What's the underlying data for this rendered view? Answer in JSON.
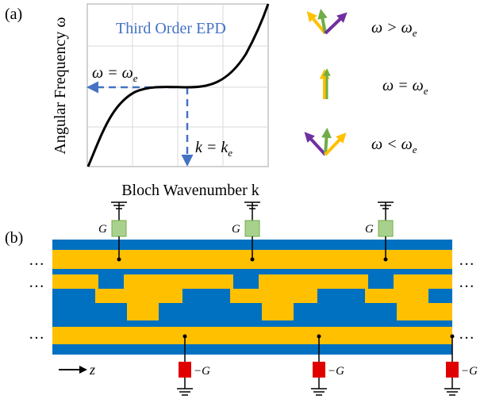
{
  "panel_a": {
    "label": "(a)",
    "plot_title": "Third Order EPD",
    "ylabel": "Angular Frequency ω",
    "xlabel": "Bloch Wavenumber k",
    "omega_eq_label": "ω = ω",
    "omega_sub": "e",
    "k_eq_label": "k = k",
    "k_sub": "e",
    "conditions": [
      {
        "label": "ω > ω",
        "sub": "e"
      },
      {
        "label": "ω = ω",
        "sub": "e"
      },
      {
        "label": "ω < ω",
        "sub": "e"
      }
    ],
    "colors": {
      "title": "#4472c4",
      "curve": "#000000",
      "dashed": "#4472c4",
      "arrow_yellow": "#ffc000",
      "arrow_green": "#70ad47",
      "arrow_purple": "#7030a0"
    }
  },
  "panel_b": {
    "label": "(b)",
    "ellipsis": "…",
    "g_top": "G",
    "g_bottom": "−G",
    "z_label": "z",
    "colors": {
      "blue": "#0070c0",
      "yellow": "#ffc000",
      "green_box": "#a9d18e",
      "red_box": "#e00000"
    }
  }
}
